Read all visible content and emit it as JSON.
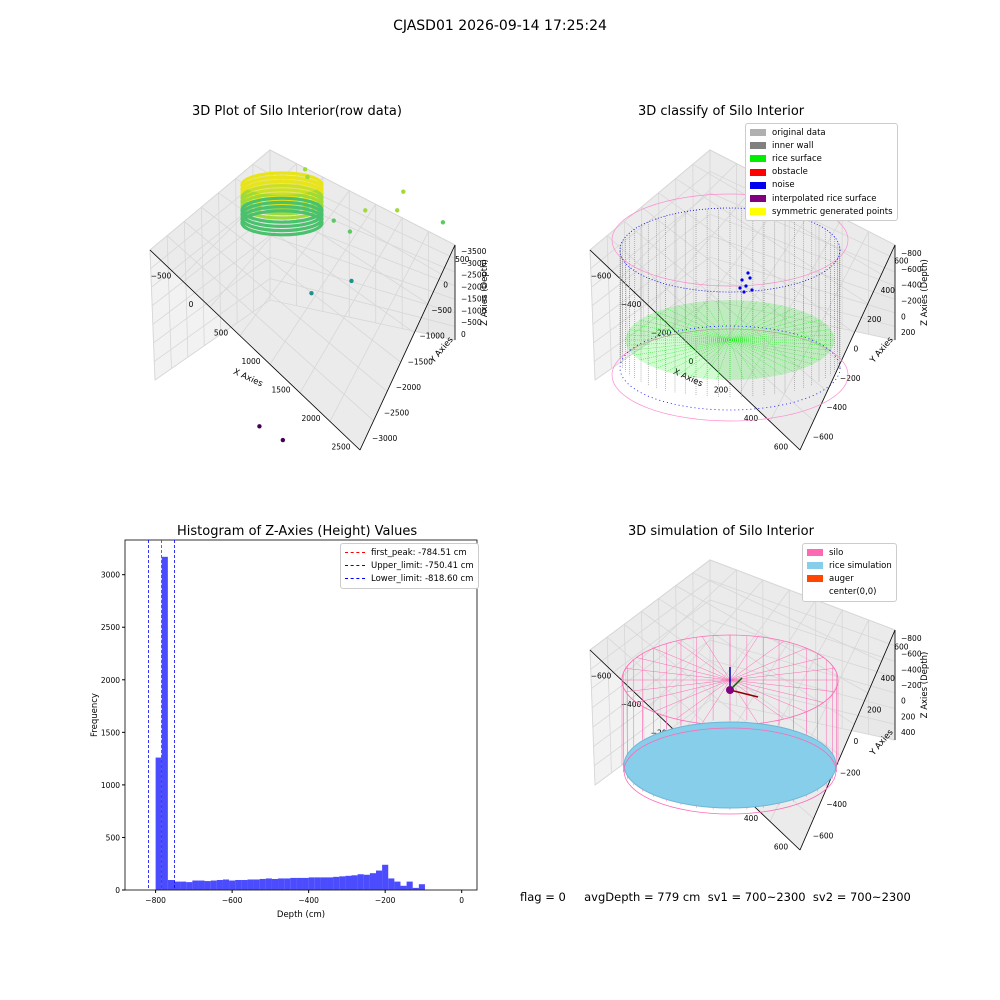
{
  "figure": {
    "suptitle": "CJASD01 2026-09-14 17:25:24",
    "footer": "flag = 0     avgDepth = 779 cm  sv1 = 700~2300  sv2 = 700~2300"
  },
  "chart_data": [
    {
      "type": "scatter",
      "projection": "3d",
      "title": "3D Plot of Silo Interior(row data)",
      "xlabel": "X Axies",
      "ylabel": "Y Axies",
      "zlabel": "Z Axies (Depth)",
      "xticks": [
        "−500",
        "0",
        "500",
        "1000",
        "1500",
        "2000",
        "2500"
      ],
      "yticks": [
        "−3000",
        "−2500",
        "−2000",
        "−1500",
        "−1000",
        "−500",
        "0",
        "500"
      ],
      "zticks": [
        "−3500",
        "−3000",
        "−2500",
        "−2000",
        "−1500",
        "−1000",
        "−500",
        "0"
      ],
      "xlim": [
        -700,
        2900
      ],
      "ylim": [
        -3000,
        800
      ],
      "zlim": [
        -3700,
        200
      ],
      "colormap": "viridis",
      "cluster": {
        "center": [
          0,
          0
        ],
        "radius": 650,
        "z_top": 0,
        "z_bottom": -800,
        "note": "dense ring of points"
      },
      "outliers": [
        {
          "x": 100,
          "y": 100,
          "z": -700
        },
        {
          "x": 200,
          "y": 0,
          "z": -750
        },
        {
          "x": 1300,
          "y": 0,
          "z": -900
        },
        {
          "x": 1700,
          "y": 600,
          "z": -700
        },
        {
          "x": 1800,
          "y": 200,
          "z": -800
        },
        {
          "x": 2400,
          "y": 700,
          "z": -1000
        },
        {
          "x": 700,
          "y": 0,
          "z": -1300
        },
        {
          "x": 900,
          "y": 200,
          "z": -1500
        },
        {
          "x": 1200,
          "y": -300,
          "z": -2000
        },
        {
          "x": 600,
          "y": -600,
          "z": -2300
        },
        {
          "x": 800,
          "y": -2800,
          "z": -3500
        },
        {
          "x": 1300,
          "y": -2900,
          "z": -3500
        }
      ]
    },
    {
      "type": "scatter",
      "projection": "3d",
      "title": "3D classify of Silo Interior",
      "xlabel": "X Axies",
      "ylabel": "Y Axies",
      "zlabel": "Z Axies (Depth)",
      "xticks": [
        "−600",
        "−400",
        "−200",
        "0",
        "200",
        "400",
        "600"
      ],
      "yticks": [
        "−600",
        "−400",
        "−200",
        "0",
        "200",
        "400",
        "600"
      ],
      "zticks": [
        "−800",
        "−600",
        "−400",
        "−200",
        "0",
        "200"
      ],
      "xlim": [
        -700,
        700
      ],
      "ylim": [
        -700,
        700
      ],
      "zlim": [
        -900,
        300
      ],
      "legend_position": "upper right",
      "legend": [
        {
          "label": "original data",
          "color": "#b0b0b0"
        },
        {
          "label": "inner wall",
          "color": "#808080"
        },
        {
          "label": "rice surface",
          "color": "#00ee00"
        },
        {
          "label": "obstacle",
          "color": "#ff0000"
        },
        {
          "label": "noise",
          "color": "#0000ee"
        },
        {
          "label": "interpolated rice surface",
          "color": "#800080"
        },
        {
          "label": "symmetric generated points",
          "color": "#ffff00"
        }
      ],
      "silo": {
        "radius": 650,
        "z_top": 200,
        "z_bottom": -850
      },
      "rice_surface_depth": -780
    },
    {
      "type": "bar",
      "title": "Histogram of Z-Axies (Height) Values",
      "xlabel": "Depth (cm)",
      "ylabel": "Frequency",
      "xlim": [
        -880,
        40
      ],
      "ylim": [
        0,
        3330
      ],
      "xticks": [
        -800,
        -600,
        -400,
        -200,
        0
      ],
      "xtick_labels": [
        "−800",
        "−600",
        "−400",
        "−200",
        "0"
      ],
      "yticks": [
        0,
        500,
        1000,
        1500,
        2000,
        2500,
        3000
      ],
      "bar_color": "#0000ff",
      "bin_width": 16,
      "bin_start": -800,
      "values": [
        1260,
        3170,
        95,
        80,
        80,
        75,
        90,
        90,
        85,
        90,
        95,
        100,
        90,
        95,
        95,
        100,
        100,
        105,
        110,
        105,
        110,
        110,
        115,
        115,
        115,
        120,
        120,
        120,
        120,
        125,
        130,
        135,
        140,
        150,
        145,
        160,
        185,
        240,
        110,
        80,
        40,
        80,
        20,
        55
      ],
      "legend_position": "upper right",
      "vlines": [
        {
          "label": "first_peak: -784.51 cm",
          "x": -784.51,
          "color": "#ff0000"
        },
        {
          "label": "Upper_limit: -750.41 cm",
          "x": -750.41,
          "color": "#0000ff"
        },
        {
          "label": "Lower_limit: -818.60 cm",
          "x": -818.6,
          "color": "#0000ff"
        }
      ]
    },
    {
      "type": "surface",
      "projection": "3d",
      "title": "3D simulation of Silo Interior",
      "xlabel": "X Axies",
      "ylabel": "Y Axies",
      "zlabel": "Z Axies (Depth)",
      "xticks": [
        "−600",
        "−400",
        "−200",
        "0",
        "200",
        "400",
        "600"
      ],
      "yticks": [
        "−600",
        "−400",
        "−200",
        "0",
        "200",
        "400",
        "600"
      ],
      "zticks": [
        "−800",
        "−600",
        "−400",
        "−200",
        "0",
        "200",
        "400"
      ],
      "xlim": [
        -700,
        700
      ],
      "ylim": [
        -700,
        700
      ],
      "zlim": [
        -900,
        500
      ],
      "legend_position": "upper right",
      "legend": [
        {
          "label": "silo",
          "color": "#ff69b4"
        },
        {
          "label": "rice simulation",
          "color": "#87ceeb"
        },
        {
          "label": "auger",
          "color": "#ff4500"
        },
        {
          "label": "center(0,0)",
          "color": "#ffffff"
        }
      ],
      "silo": {
        "radius": 650,
        "z_top": 200,
        "z_bottom": -850
      },
      "rice_surface_depth": -779
    }
  ]
}
